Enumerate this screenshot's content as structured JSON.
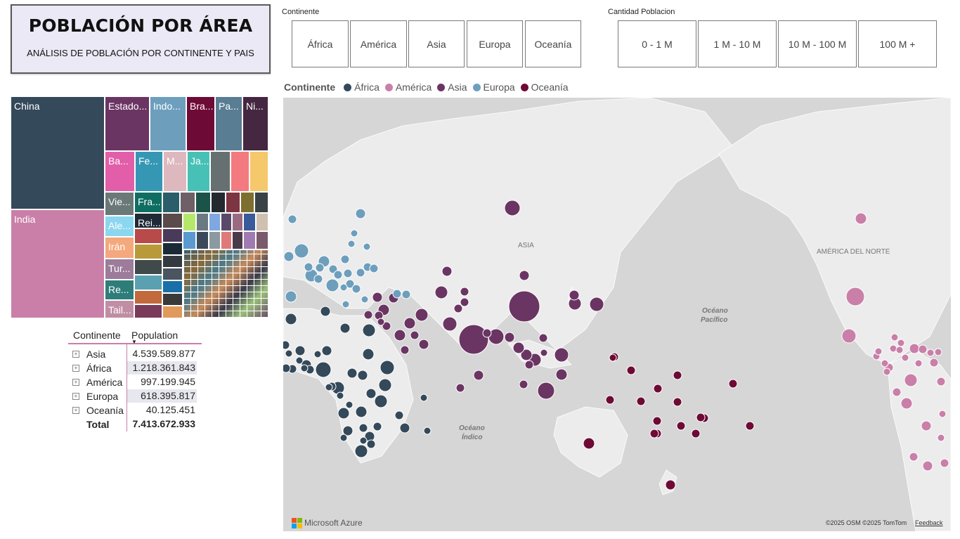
{
  "title": {
    "main": "POBLACIÓN POR ÁREA",
    "subtitle": "ANÁLISIS DE POBLACIÓN POR CONTINENTE Y PAIS"
  },
  "continent_slicer": {
    "label": "Continente",
    "options": [
      "África",
      "América",
      "Asia",
      "Europa",
      "Oceanía"
    ]
  },
  "population_slicer": {
    "label": "Cantidad Poblacion",
    "options": [
      "0 - 1 M",
      "1 M - 10 M",
      "10 M - 100 M",
      "100 M +"
    ]
  },
  "legend": {
    "title": "Continente",
    "items": [
      {
        "label": "África",
        "color": "#34495a"
      },
      {
        "label": "América",
        "color": "#c97fa8"
      },
      {
        "label": "Asia",
        "color": "#6b3563"
      },
      {
        "label": "Europa",
        "color": "#6d9fbd"
      },
      {
        "label": "Oceanía",
        "color": "#6e0a36"
      }
    ]
  },
  "treemap": {
    "labels": {
      "china": "China",
      "india": "India",
      "estados": "Estado...",
      "indo": "Indo...",
      "bra": "Bra...",
      "pa": "Pa...",
      "ni": "Ni...",
      "ba": "Ba...",
      "fe": "Fe...",
      "m": "M...",
      "ja": "Ja...",
      "vie": "Vie...",
      "fra": "Fra...",
      "ale": "Ale...",
      "rei": "Rei...",
      "iran": "Irán",
      "tur": "Tur...",
      "re": "Re...",
      "tail": "Tail..."
    }
  },
  "matrix": {
    "headers": {
      "col1": "Continente",
      "col2": "Population"
    },
    "rows": [
      {
        "name": "Asia",
        "value": "4.539.589.877"
      },
      {
        "name": "África",
        "value": "1.218.361.843"
      },
      {
        "name": "América",
        "value": "997.199.945"
      },
      {
        "name": "Europa",
        "value": "618.395.817"
      },
      {
        "name": "Oceanía",
        "value": "40.125.451"
      }
    ],
    "total": {
      "name": "Total",
      "value": "7.413.672.933"
    }
  },
  "map": {
    "labels": {
      "asia": "ASIA",
      "na": "AMÉRICA DEL NORTE",
      "pac1": "Océano",
      "pac2": "Pacífico",
      "ind1": "Océano",
      "ind2": "Índico"
    },
    "brand": "Microsoft Azure",
    "copyright": "©2025 OSM ©2025 TomTom",
    "feedback": "Feedback"
  }
}
